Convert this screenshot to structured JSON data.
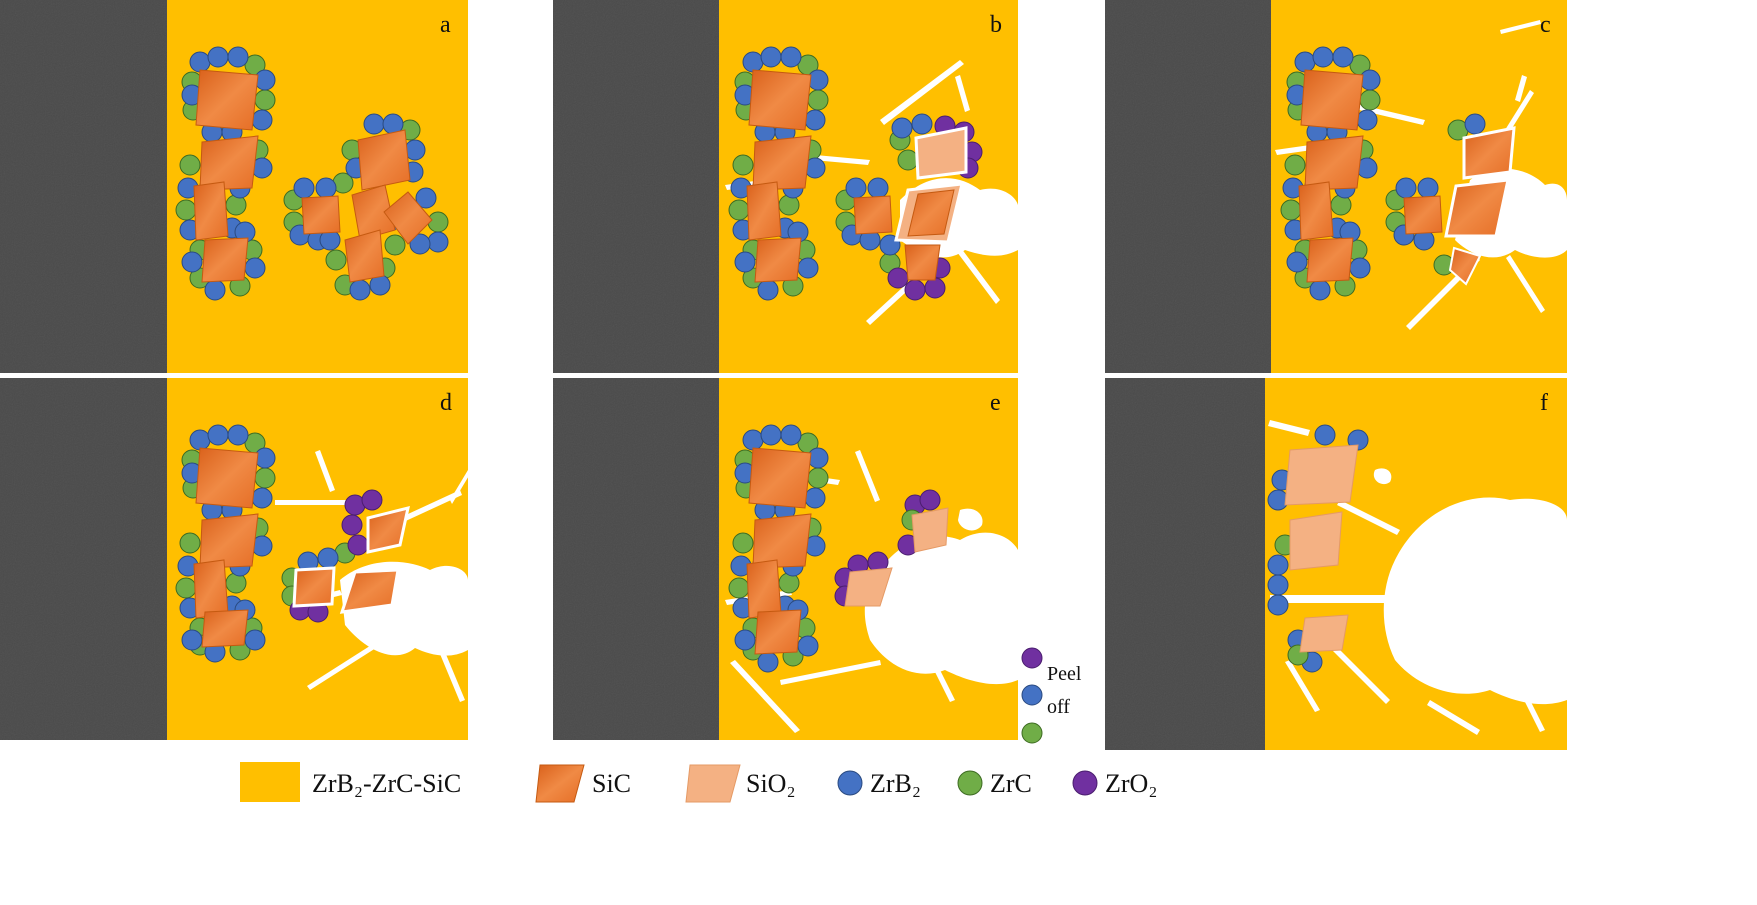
{
  "panels": [
    {
      "label": "a"
    },
    {
      "label": "b"
    },
    {
      "label": "c"
    },
    {
      "label": "d"
    },
    {
      "label": "e"
    },
    {
      "label": "f"
    }
  ],
  "annotations": {
    "peel_line1": "Peel",
    "peel_line2": "off"
  },
  "legend": [
    {
      "name": "ZrB₂-ZrC-SiC",
      "color": "#FFBF00"
    },
    {
      "name": "SiC",
      "color": "#ED7D31"
    },
    {
      "name": "SiO₂",
      "color": "#F4B183"
    },
    {
      "name": "ZrB₂",
      "color": "#4472C4"
    },
    {
      "name": "ZrC",
      "color": "#70AD47"
    },
    {
      "name": "ZrO₂",
      "color": "#7030A0"
    }
  ],
  "colors": {
    "matrix": "#FFBF00",
    "sic": "#ED7D31",
    "sio2": "#F4B183",
    "zrb2": "#4472C4",
    "zrc": "#70AD47",
    "zro2": "#7030A0",
    "substrate": "#4a4a4a"
  }
}
